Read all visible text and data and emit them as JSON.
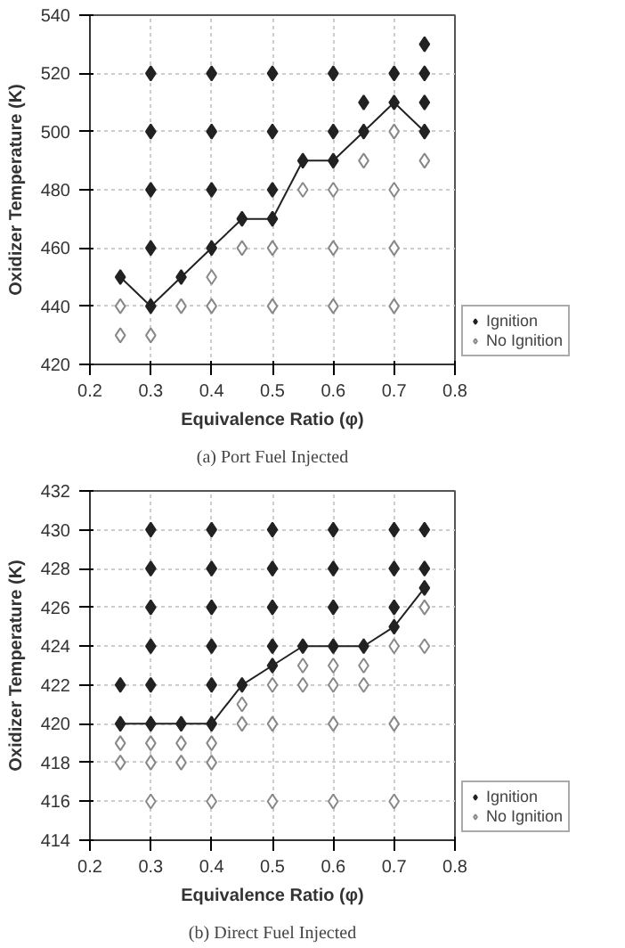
{
  "chart_data": [
    {
      "type": "scatter",
      "xlabel": "Equivalence Ratio (φ)",
      "ylabel": "Oxidizer Temperature (K)",
      "xlim": [
        0.2,
        0.8
      ],
      "xticks": [
        0.2,
        0.3,
        0.4,
        0.5,
        0.6,
        0.7,
        0.8
      ],
      "ylim": [
        420,
        540
      ],
      "yticks": [
        420,
        440,
        460,
        480,
        500,
        520,
        540
      ],
      "grid": true,
      "legend": "bottom right",
      "marker": "diamond",
      "annotations": [
        "(a) Port Fuel Injected"
      ],
      "series": [
        {
          "type": "line",
          "color": "#222222",
          "marker": "none",
          "x": [
            0.25,
            0.3,
            0.35,
            0.4,
            0.45,
            0.5,
            0.55,
            0.6,
            0.65,
            0.7,
            0.75
          ],
          "values": [
            450,
            440,
            450,
            460,
            470,
            470,
            490,
            490,
            500,
            510,
            500
          ]
        },
        {
          "name": "Ignition",
          "color": "#222222",
          "x": [
            0.25,
            0.3,
            0.3,
            0.3,
            0.3,
            0.3,
            0.35,
            0.4,
            0.4,
            0.4,
            0.4,
            0.45,
            0.5,
            0.5,
            0.5,
            0.5,
            0.55,
            0.6,
            0.6,
            0.6,
            0.65,
            0.65,
            0.7,
            0.7,
            0.75,
            0.75,
            0.75,
            0.75
          ],
          "values": [
            450,
            440,
            460,
            480,
            500,
            520,
            450,
            460,
            480,
            500,
            520,
            470,
            470,
            480,
            500,
            520,
            490,
            490,
            500,
            520,
            500,
            510,
            510,
            520,
            500,
            510,
            520,
            530
          ]
        },
        {
          "name": "No Ignition",
          "color": "#ffffff",
          "x": [
            0.25,
            0.25,
            0.3,
            0.35,
            0.4,
            0.4,
            0.45,
            0.5,
            0.5,
            0.55,
            0.6,
            0.6,
            0.6,
            0.65,
            0.7,
            0.7,
            0.7,
            0.7,
            0.75
          ],
          "values": [
            430,
            440,
            430,
            440,
            440,
            450,
            460,
            440,
            460,
            480,
            440,
            460,
            480,
            490,
            440,
            460,
            480,
            500,
            490
          ]
        }
      ]
    },
    {
      "type": "scatter",
      "xlabel": "Equivalence Ratio (φ)",
      "ylabel": "Oxidizer Temperature (K)",
      "xlim": [
        0.2,
        0.8
      ],
      "xticks": [
        0.2,
        0.3,
        0.4,
        0.5,
        0.6,
        0.7,
        0.8
      ],
      "ylim": [
        414,
        432
      ],
      "yticks": [
        414,
        416,
        418,
        420,
        422,
        424,
        426,
        428,
        430,
        432
      ],
      "grid": true,
      "legend": "bottom right",
      "marker": "diamond",
      "annotations": [
        "(b) Direct Fuel Injected"
      ],
      "series": [
        {
          "type": "line",
          "color": "#222222",
          "marker": "none",
          "x": [
            0.25,
            0.3,
            0.35,
            0.4,
            0.45,
            0.5,
            0.55,
            0.6,
            0.65,
            0.7,
            0.75
          ],
          "values": [
            420,
            420,
            420,
            420,
            422,
            423,
            424,
            424,
            424,
            425,
            427
          ]
        },
        {
          "name": "Ignition",
          "color": "#222222",
          "x": [
            0.25,
            0.25,
            0.3,
            0.3,
            0.3,
            0.3,
            0.3,
            0.3,
            0.35,
            0.4,
            0.4,
            0.4,
            0.4,
            0.4,
            0.4,
            0.45,
            0.5,
            0.5,
            0.5,
            0.5,
            0.5,
            0.55,
            0.6,
            0.6,
            0.6,
            0.6,
            0.65,
            0.7,
            0.7,
            0.7,
            0.7,
            0.75,
            0.75,
            0.75
          ],
          "values": [
            420,
            422,
            420,
            422,
            424,
            426,
            428,
            430,
            420,
            420,
            422,
            424,
            426,
            428,
            430,
            422,
            423,
            424,
            426,
            428,
            430,
            424,
            424,
            426,
            428,
            430,
            424,
            425,
            426,
            428,
            430,
            427,
            428,
            430
          ]
        },
        {
          "name": "No Ignition",
          "color": "#ffffff",
          "x": [
            0.25,
            0.25,
            0.3,
            0.3,
            0.3,
            0.35,
            0.35,
            0.4,
            0.4,
            0.4,
            0.45,
            0.45,
            0.5,
            0.5,
            0.5,
            0.55,
            0.55,
            0.6,
            0.6,
            0.6,
            0.6,
            0.65,
            0.65,
            0.7,
            0.7,
            0.7,
            0.75,
            0.75
          ],
          "values": [
            418,
            419,
            416,
            418,
            419,
            418,
            419,
            416,
            418,
            419,
            420,
            421,
            416,
            420,
            422,
            422,
            423,
            416,
            420,
            422,
            423,
            422,
            423,
            416,
            420,
            424,
            424,
            426
          ]
        }
      ]
    }
  ]
}
